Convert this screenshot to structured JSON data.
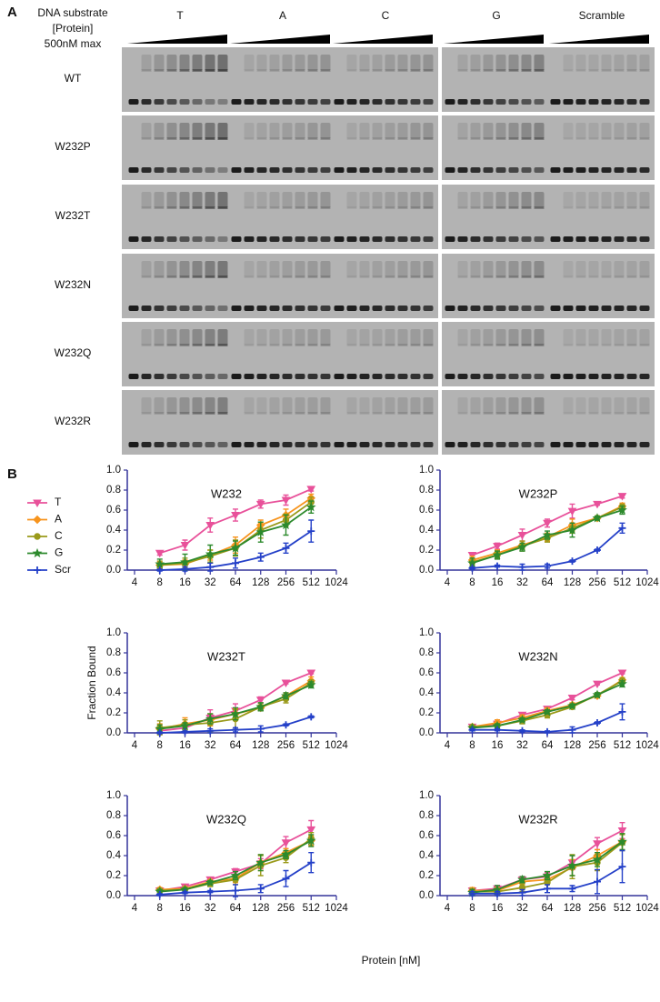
{
  "panel_a": {
    "label": "A",
    "header": [
      "DNA substrate",
      "[Protein]",
      "500nM max"
    ],
    "groups": [
      "T",
      "A",
      "C",
      "G",
      "Scramble"
    ],
    "rows": [
      "WT",
      "W232P",
      "W232T",
      "W232N",
      "W232Q",
      "W232R"
    ]
  },
  "panel_b": {
    "label": "B",
    "ylabel": "Fraction Bound",
    "xlabel": "Protein [nM]"
  },
  "chart_data": [
    {
      "type": "line",
      "title": "W232",
      "legend": "outside-left",
      "xscale": "log",
      "xlim": [
        4,
        1024
      ],
      "xticks": [
        4,
        8,
        16,
        32,
        64,
        128,
        256,
        512,
        1024
      ],
      "ylim": [
        0,
        1
      ],
      "yticks": [
        {
          "value": 0,
          "label": "0.0"
        },
        0.2,
        0.4,
        0.6,
        0.8,
        {
          "value": 1,
          "label": "1.0"
        }
      ],
      "x": [
        8,
        16,
        32,
        64,
        128,
        256,
        512
      ],
      "series": [
        {
          "name": "T",
          "color": "#e8519a",
          "marker": "triangle-down",
          "values": [
            0.17,
            0.25,
            0.45,
            0.55,
            0.66,
            0.7,
            0.81
          ],
          "errors": [
            0.02,
            0.05,
            0.07,
            0.06,
            0.04,
            0.05,
            0.02
          ]
        },
        {
          "name": "A",
          "color": "#f7941d",
          "marker": "diamond",
          "values": [
            0.05,
            0.06,
            0.15,
            0.25,
            0.45,
            0.55,
            0.72
          ],
          "errors": [
            0.03,
            0.04,
            0.05,
            0.08,
            0.05,
            0.06,
            0.04
          ]
        },
        {
          "name": "C",
          "color": "#9a9a1a",
          "marker": "circle",
          "values": [
            0.05,
            0.07,
            0.14,
            0.22,
            0.4,
            0.5,
            0.68
          ],
          "errors": [
            0.04,
            0.05,
            0.06,
            0.08,
            0.08,
            0.06,
            0.05
          ]
        },
        {
          "name": "G",
          "color": "#2d8a2d",
          "marker": "star",
          "values": [
            0.06,
            0.08,
            0.16,
            0.22,
            0.38,
            0.45,
            0.63
          ],
          "errors": [
            0.05,
            0.08,
            0.09,
            0.07,
            0.1,
            0.1,
            0.06
          ]
        },
        {
          "name": "Scr",
          "color": "#2440c8",
          "marker": "plus",
          "values": [
            0.0,
            0.01,
            0.03,
            0.07,
            0.13,
            0.22,
            0.39
          ],
          "errors": [
            0.01,
            0.02,
            0.04,
            0.05,
            0.04,
            0.05,
            0.11
          ]
        }
      ]
    },
    {
      "type": "line",
      "title": "W232P",
      "xscale": "log",
      "xlim": [
        4,
        1024
      ],
      "xticks": [
        4,
        8,
        16,
        32,
        64,
        128,
        256,
        512,
        1024
      ],
      "ylim": [
        0,
        1
      ],
      "yticks": [
        {
          "value": 0,
          "label": "0.0"
        },
        0.2,
        0.4,
        0.6,
        0.8,
        {
          "value": 1,
          "label": "1.0"
        }
      ],
      "x": [
        8,
        16,
        32,
        64,
        128,
        256,
        512
      ],
      "series": [
        {
          "color": "#e8519a",
          "marker": "triangle-down",
          "values": [
            0.15,
            0.24,
            0.35,
            0.47,
            0.59,
            0.66,
            0.74
          ],
          "errors": [
            0.01,
            0.03,
            0.06,
            0.04,
            0.07,
            0.01,
            0.02
          ]
        },
        {
          "color": "#f7941d",
          "marker": "diamond",
          "values": [
            0.1,
            0.17,
            0.25,
            0.33,
            0.45,
            0.52,
            0.64
          ],
          "errors": [
            0.04,
            0.03,
            0.04,
            0.04,
            0.06,
            0.02,
            0.03
          ]
        },
        {
          "color": "#9a9a1a",
          "marker": "circle",
          "values": [
            0.08,
            0.15,
            0.24,
            0.32,
            0.42,
            0.52,
            0.63
          ],
          "errors": [
            0.04,
            0.03,
            0.05,
            0.04,
            0.05,
            0.02,
            0.03
          ]
        },
        {
          "color": "#2d8a2d",
          "marker": "star",
          "values": [
            0.07,
            0.15,
            0.23,
            0.35,
            0.4,
            0.52,
            0.6
          ],
          "errors": [
            0.05,
            0.04,
            0.04,
            0.04,
            0.07,
            0.02,
            0.04
          ]
        },
        {
          "color": "#2440c8",
          "marker": "plus",
          "values": [
            0.02,
            0.04,
            0.03,
            0.04,
            0.09,
            0.2,
            0.42
          ],
          "errors": [
            0.01,
            0.01,
            0.03,
            0.02,
            0.01,
            0.01,
            0.05
          ]
        }
      ]
    },
    {
      "type": "line",
      "title": "W232T",
      "xscale": "log",
      "xlim": [
        4,
        1024
      ],
      "xticks": [
        4,
        8,
        16,
        32,
        64,
        128,
        256,
        512,
        1024
      ],
      "ylim": [
        0,
        1
      ],
      "yticks": [
        {
          "value": 0,
          "label": "0.0"
        },
        0.2,
        0.4,
        0.6,
        0.8,
        {
          "value": 1,
          "label": "1.0"
        }
      ],
      "x": [
        8,
        16,
        32,
        64,
        128,
        256,
        512
      ],
      "series": [
        {
          "color": "#e8519a",
          "marker": "triangle-down",
          "values": [
            0.02,
            0.05,
            0.15,
            0.22,
            0.33,
            0.5,
            0.6
          ],
          "errors": [
            0.03,
            0.05,
            0.08,
            0.07,
            0.03,
            0.01,
            0.01
          ]
        },
        {
          "color": "#f7941d",
          "marker": "diamond",
          "values": [
            0.04,
            0.09,
            0.13,
            0.19,
            0.25,
            0.37,
            0.52
          ],
          "errors": [
            0.05,
            0.06,
            0.06,
            0.05,
            0.03,
            0.03,
            0.04
          ]
        },
        {
          "color": "#9a9a1a",
          "marker": "circle",
          "values": [
            0.05,
            0.08,
            0.1,
            0.14,
            0.26,
            0.34,
            0.5
          ],
          "errors": [
            0.07,
            0.05,
            0.09,
            0.09,
            0.04,
            0.04,
            0.03
          ]
        },
        {
          "color": "#2d8a2d",
          "marker": "star",
          "values": [
            0.04,
            0.07,
            0.14,
            0.19,
            0.26,
            0.37,
            0.48
          ],
          "errors": [
            0.04,
            0.03,
            0.05,
            0.06,
            0.04,
            0.03,
            0.03
          ]
        },
        {
          "color": "#2440c8",
          "marker": "plus",
          "values": [
            0.0,
            0.01,
            0.02,
            0.03,
            0.04,
            0.08,
            0.16
          ],
          "errors": [
            0.01,
            0.01,
            0.02,
            0.02,
            0.03,
            0.01,
            0.01
          ]
        }
      ]
    },
    {
      "type": "line",
      "title": "W232N",
      "xscale": "log",
      "xlim": [
        4,
        1024
      ],
      "xticks": [
        4,
        8,
        16,
        32,
        64,
        128,
        256,
        512,
        1024
      ],
      "ylim": [
        0,
        1
      ],
      "yticks": [
        {
          "value": 0,
          "label": "0.0"
        },
        0.2,
        0.4,
        0.6,
        0.8,
        {
          "value": 1,
          "label": "1.0"
        }
      ],
      "x": [
        8,
        16,
        32,
        64,
        128,
        256,
        512
      ],
      "series": [
        {
          "color": "#e8519a",
          "marker": "triangle-down",
          "values": [
            0.06,
            0.09,
            0.18,
            0.24,
            0.35,
            0.49,
            0.6
          ],
          "errors": [
            0.01,
            0.02,
            0.02,
            0.02,
            0.02,
            0.01,
            0.01
          ]
        },
        {
          "color": "#f7941d",
          "marker": "diamond",
          "values": [
            0.06,
            0.1,
            0.15,
            0.22,
            0.28,
            0.37,
            0.53
          ],
          "errors": [
            0.01,
            0.03,
            0.03,
            0.03,
            0.02,
            0.02,
            0.02
          ]
        },
        {
          "color": "#9a9a1a",
          "marker": "circle",
          "values": [
            0.06,
            0.07,
            0.12,
            0.18,
            0.26,
            0.38,
            0.52
          ],
          "errors": [
            0.01,
            0.02,
            0.03,
            0.03,
            0.02,
            0.02,
            0.03
          ]
        },
        {
          "color": "#2d8a2d",
          "marker": "star",
          "values": [
            0.05,
            0.07,
            0.13,
            0.21,
            0.27,
            0.38,
            0.49
          ],
          "errors": [
            0.01,
            0.02,
            0.02,
            0.02,
            0.02,
            0.02,
            0.03
          ]
        },
        {
          "color": "#2440c8",
          "marker": "plus",
          "values": [
            0.03,
            0.03,
            0.02,
            0.01,
            0.03,
            0.1,
            0.21
          ],
          "errors": [
            0.01,
            0.01,
            0.01,
            0.01,
            0.03,
            0.01,
            0.08
          ]
        }
      ]
    },
    {
      "type": "line",
      "title": "W232Q",
      "xscale": "log",
      "xlim": [
        4,
        1024
      ],
      "xticks": [
        4,
        8,
        16,
        32,
        64,
        128,
        256,
        512,
        1024
      ],
      "ylim": [
        0,
        1
      ],
      "yticks": [
        {
          "value": 0,
          "label": "0.0"
        },
        0.2,
        0.4,
        0.6,
        0.8,
        {
          "value": 1,
          "label": "1.0"
        }
      ],
      "x": [
        8,
        16,
        32,
        64,
        128,
        256,
        512
      ],
      "series": [
        {
          "color": "#e8519a",
          "marker": "triangle-down",
          "values": [
            0.05,
            0.09,
            0.16,
            0.24,
            0.32,
            0.53,
            0.66
          ],
          "errors": [
            0.02,
            0.02,
            0.02,
            0.03,
            0.05,
            0.06,
            0.09
          ]
        },
        {
          "color": "#f7941d",
          "marker": "diamond",
          "values": [
            0.06,
            0.07,
            0.14,
            0.17,
            0.33,
            0.43,
            0.55
          ],
          "errors": [
            0.02,
            0.02,
            0.02,
            0.04,
            0.08,
            0.04,
            0.05
          ]
        },
        {
          "color": "#9a9a1a",
          "marker": "circle",
          "values": [
            0.05,
            0.06,
            0.12,
            0.16,
            0.3,
            0.38,
            0.57
          ],
          "errors": [
            0.02,
            0.02,
            0.03,
            0.05,
            0.1,
            0.05,
            0.06
          ]
        },
        {
          "color": "#2d8a2d",
          "marker": "star",
          "values": [
            0.04,
            0.06,
            0.13,
            0.2,
            0.33,
            0.41,
            0.55
          ],
          "errors": [
            0.02,
            0.02,
            0.02,
            0.04,
            0.08,
            0.04,
            0.06
          ]
        },
        {
          "color": "#2440c8",
          "marker": "plus",
          "values": [
            0.01,
            0.03,
            0.04,
            0.05,
            0.07,
            0.17,
            0.33
          ],
          "errors": [
            0.01,
            0.01,
            0.01,
            0.06,
            0.04,
            0.08,
            0.1
          ]
        }
      ]
    },
    {
      "type": "line",
      "title": "W232R",
      "xscale": "log",
      "xlim": [
        4,
        1024
      ],
      "xticks": [
        4,
        8,
        16,
        32,
        64,
        128,
        256,
        512,
        1024
      ],
      "ylim": [
        0,
        1
      ],
      "yticks": [
        {
          "value": 0,
          "label": "0.0"
        },
        0.2,
        0.4,
        0.6,
        0.8,
        {
          "value": 1,
          "label": "1.0"
        }
      ],
      "x": [
        8,
        16,
        32,
        64,
        128,
        256,
        512
      ],
      "series": [
        {
          "color": "#e8519a",
          "marker": "triangle-down",
          "values": [
            0.05,
            0.07,
            0.16,
            0.19,
            0.33,
            0.52,
            0.65
          ],
          "errors": [
            0.03,
            0.03,
            0.03,
            0.04,
            0.07,
            0.06,
            0.08
          ]
        },
        {
          "color": "#f7941d",
          "marker": "diamond",
          "values": [
            0.05,
            0.05,
            0.14,
            0.16,
            0.28,
            0.4,
            0.54
          ],
          "errors": [
            0.03,
            0.03,
            0.03,
            0.05,
            0.08,
            0.06,
            0.08
          ]
        },
        {
          "color": "#9a9a1a",
          "marker": "circle",
          "values": [
            0.04,
            0.04,
            0.08,
            0.13,
            0.29,
            0.33,
            0.53
          ],
          "errors": [
            0.03,
            0.03,
            0.04,
            0.06,
            0.12,
            0.08,
            0.08
          ]
        },
        {
          "color": "#2d8a2d",
          "marker": "star",
          "values": [
            0.03,
            0.06,
            0.16,
            0.2,
            0.3,
            0.36,
            0.54
          ],
          "errors": [
            0.03,
            0.04,
            0.03,
            0.04,
            0.1,
            0.07,
            0.08
          ]
        },
        {
          "color": "#2440c8",
          "marker": "plus",
          "values": [
            0.02,
            0.02,
            0.03,
            0.07,
            0.07,
            0.14,
            0.29
          ],
          "errors": [
            0.02,
            0.02,
            0.03,
            0.04,
            0.03,
            0.12,
            0.16
          ]
        }
      ]
    }
  ]
}
